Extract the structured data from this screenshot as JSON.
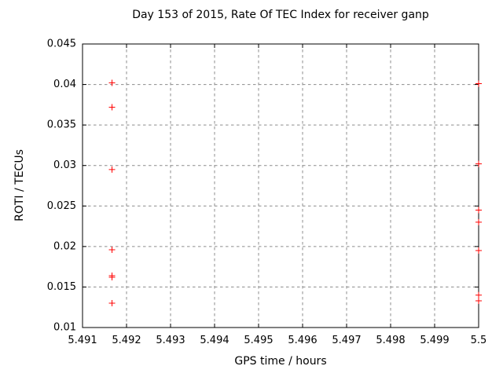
{
  "page": {
    "background": "#ffffff"
  },
  "chart_data": {
    "type": "scatter",
    "title": "Day 153 of 2015, Rate Of TEC Index for receiver ganp",
    "xlabel": "GPS time / hours",
    "ylabel": "ROTI / TECUs",
    "xlim": [
      5.491,
      5.5
    ],
    "ylim": [
      0.01,
      0.045
    ],
    "xticks": {
      "values": [
        5.491,
        5.492,
        5.493,
        5.494,
        5.495,
        5.496,
        5.497,
        5.498,
        5.499,
        5.5
      ],
      "labels": [
        "5.491",
        "5.492",
        "5.493",
        "5.494",
        "5.495",
        "5.496",
        "5.497",
        "5.498",
        "5.499",
        "5.5"
      ]
    },
    "yticks": {
      "values": [
        0.01,
        0.015,
        0.02,
        0.025,
        0.03,
        0.035,
        0.04,
        0.045
      ],
      "labels": [
        "0.01",
        "0.015",
        "0.02",
        "0.025",
        "0.03",
        "0.035",
        "0.04",
        "0.045"
      ]
    },
    "grid": {
      "show": true,
      "color": "#8c8c8c",
      "dash": "3.5 3.5"
    },
    "legend": {
      "show": false
    },
    "axis_color": "#000000",
    "marker_size": 4,
    "series": [
      {
        "name": "ROTI",
        "marker": "plus",
        "color": "#ff0000",
        "points": [
          [
            5.49167,
            0.0402
          ],
          [
            5.49167,
            0.0372
          ],
          [
            5.49167,
            0.0295
          ],
          [
            5.49167,
            0.0196
          ],
          [
            5.49167,
            0.0164
          ],
          [
            5.49167,
            0.0162
          ],
          [
            5.49167,
            0.013
          ],
          [
            5.5,
            0.0401
          ],
          [
            5.5,
            0.0302
          ],
          [
            5.5,
            0.0245
          ],
          [
            5.5,
            0.023
          ],
          [
            5.5,
            0.0195
          ],
          [
            5.5,
            0.014
          ],
          [
            5.5,
            0.0133
          ]
        ]
      }
    ]
  }
}
